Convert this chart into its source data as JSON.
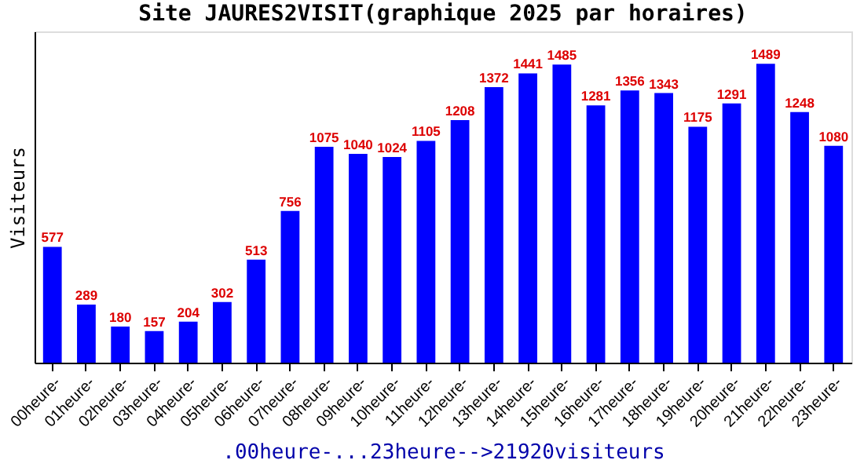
{
  "chart_data": {
    "type": "bar",
    "title": "Site JAURES2VISIT(graphique 2025 par horaires)",
    "xlabel": ".00heure-...23heure-->21920visiteurs",
    "ylabel": "Visiteurs",
    "categories": [
      "00heure-",
      "01heure-",
      "02heure-",
      "03heure-",
      "04heure-",
      "05heure-",
      "06heure-",
      "07heure-",
      "08heure-",
      "09heure-",
      "10heure-",
      "11heure-",
      "12heure-",
      "13heure-",
      "14heure-",
      "15heure-",
      "16heure-",
      "17heure-",
      "18heure-",
      "19heure-",
      "20heure-",
      "21heure-",
      "22heure-",
      "23heure-"
    ],
    "values": [
      577,
      289,
      180,
      157,
      204,
      302,
      513,
      756,
      1075,
      1040,
      1024,
      1105,
      1208,
      1372,
      1441,
      1485,
      1281,
      1356,
      1343,
      1175,
      1291,
      1489,
      1248,
      1080
    ],
    "color": "#0000ff",
    "ylim": [
      0,
      1650
    ],
    "data_labels": true,
    "grid": false,
    "tick_labels": "x"
  }
}
